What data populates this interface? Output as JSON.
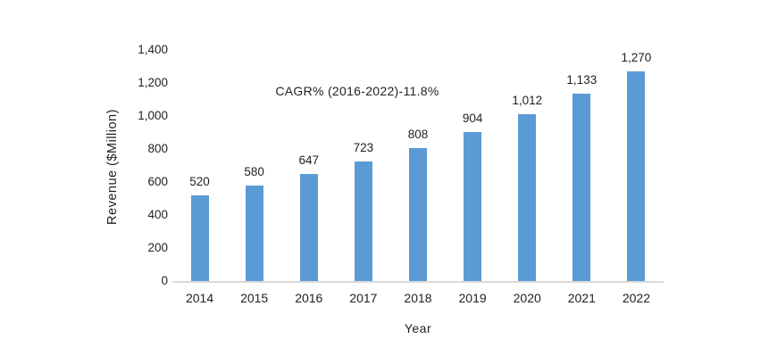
{
  "chart_data": {
    "type": "bar",
    "title": "",
    "xlabel": "Year",
    "ylabel": "Revenue ($Million)",
    "annotation": "CAGR% (2016-2022)-11.8%",
    "categories": [
      "2014",
      "2015",
      "2016",
      "2017",
      "2018",
      "2019",
      "2020",
      "2021",
      "2022"
    ],
    "values": [
      520,
      580,
      647,
      723,
      808,
      904,
      1012,
      1133,
      1270
    ],
    "value_labels": [
      "520",
      "580",
      "647",
      "723",
      "808",
      "904",
      "1,012",
      "1,133",
      "1,270"
    ],
    "ylim": [
      0,
      1400
    ],
    "ytick_step": 200,
    "ytick_labels": [
      "0",
      "200",
      "400",
      "600",
      "800",
      "1,000",
      "1,200",
      "1,400"
    ],
    "grid": "off",
    "legend": "none",
    "bar_color": "#5b9bd5",
    "axis_line_color": "#d9d9d9",
    "text_color": "#1f1f1f",
    "background_color": "#ffffff"
  }
}
